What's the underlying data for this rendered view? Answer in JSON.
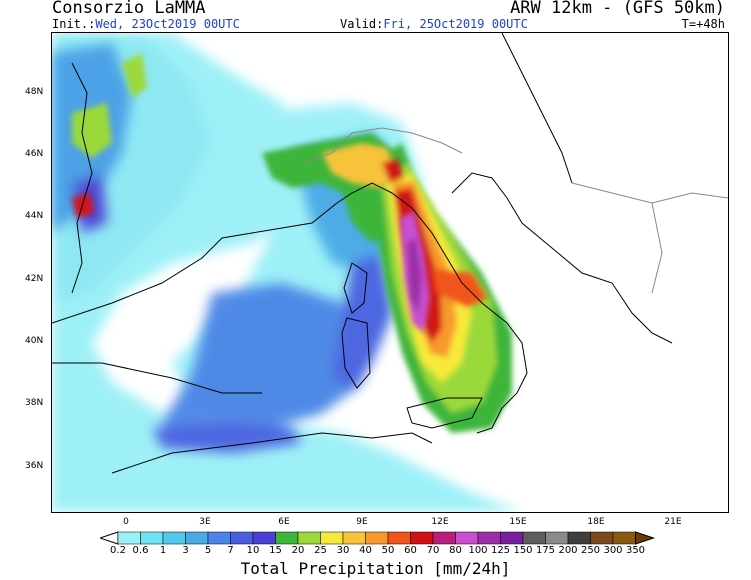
{
  "header": {
    "org": "Consorzio LaMMA",
    "model": "ARW 12km - (GFS 50km)",
    "init_label": "Init.:",
    "init_value": "Wed, 23Oct2019 00UTC",
    "valid_label": "Valid:",
    "valid_value": "Fri, 25Oct2019 00UTC",
    "timestep": "T=+48h"
  },
  "axes": {
    "lat_ticks": [
      "48N",
      "46N",
      "44N",
      "42N",
      "40N",
      "38N",
      "36N"
    ],
    "lon_ticks": [
      "0",
      "3E",
      "6E",
      "9E",
      "12E",
      "15E",
      "18E",
      "21E"
    ]
  },
  "legend": {
    "title": "Total Precipitation [mm/24h]",
    "levels": [
      "0.2",
      "0.6",
      "1",
      "3",
      "5",
      "7",
      "10",
      "15",
      "20",
      "25",
      "30",
      "40",
      "50",
      "60",
      "70",
      "80",
      "100",
      "125",
      "150",
      "175",
      "200",
      "250",
      "300",
      "350"
    ],
    "colors": [
      "#9ef0f7",
      "#6fe3f1",
      "#52c8ea",
      "#4aa9e6",
      "#4c84e6",
      "#4a5fe0",
      "#4c3fd6",
      "#3db53a",
      "#9bd93a",
      "#f7e93a",
      "#f7c33a",
      "#f79a2e",
      "#f2541d",
      "#d21212",
      "#b81e7a",
      "#c84fd0",
      "#9a2fa8",
      "#7a1ea0",
      "#5e5e5e",
      "#8a8a8a",
      "#3e3e3e",
      "#7a4a1e",
      "#8a5a0e",
      "#6a3a0a"
    ]
  }
}
